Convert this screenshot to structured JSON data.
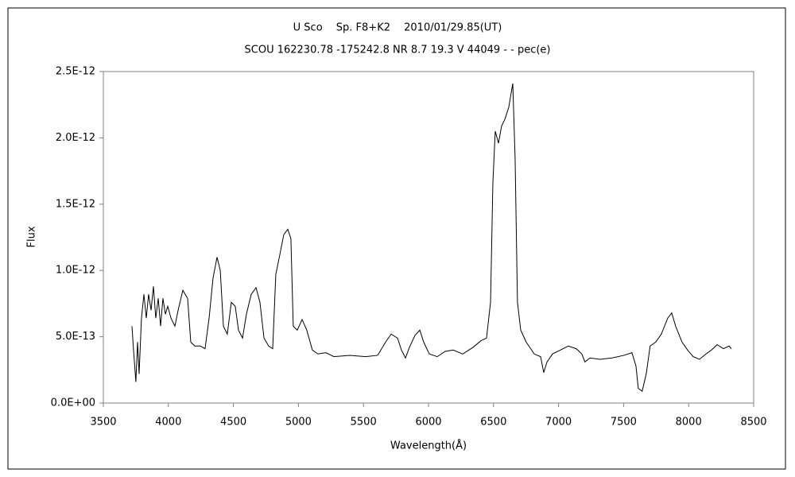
{
  "chart_data": {
    "type": "line",
    "title": "U Sco　 Sp. F8+K2　 2010/01/29.85(UT)",
    "subtitle": "SCOU 162230.78 -175242.8 NR 8.7 19.3 V 44049 - - pec(e)",
    "x_label": "Wavelength(Å)",
    "y_label": "Flux",
    "xlim": [
      3500,
      8500
    ],
    "xticks": [
      3500,
      4000,
      4500,
      5000,
      5500,
      6000,
      6500,
      7000,
      7500,
      8000,
      8500
    ],
    "ylim": [
      0,
      2.5e-12
    ],
    "yticks": [
      {
        "value": 0,
        "label": "0.0E+00"
      },
      {
        "value": 5e-13,
        "label": "5.0E-13"
      },
      {
        "value": 1e-12,
        "label": "1.0E-12"
      },
      {
        "value": 1.5e-12,
        "label": "1.5E-12"
      },
      {
        "value": 2e-12,
        "label": "2.0E-12"
      },
      {
        "value": 2.5e-12,
        "label": "2.5E-12"
      }
    ],
    "grid": false,
    "x": [
      3720,
      3732,
      3750,
      3763,
      3775,
      3793,
      3812,
      3830,
      3848,
      3867,
      3885,
      3903,
      3922,
      3940,
      3958,
      3977,
      3995,
      4020,
      4050,
      4075,
      4111,
      4148,
      4172,
      4203,
      4246,
      4282,
      4313,
      4343,
      4374,
      4399,
      4423,
      4453,
      4484,
      4514,
      4539,
      4570,
      4600,
      4637,
      4674,
      4704,
      4735,
      4771,
      4802,
      4826,
      4857,
      4887,
      4918,
      4942,
      4960,
      4991,
      5028,
      5064,
      5107,
      5150,
      5211,
      5273,
      5395,
      5517,
      5609,
      5670,
      5713,
      5762,
      5792,
      5823,
      5853,
      5896,
      5933,
      5963,
      6006,
      6067,
      6128,
      6190,
      6263,
      6342,
      6403,
      6446,
      6477,
      6495,
      6513,
      6538,
      6562,
      6587,
      6617,
      6648,
      6666,
      6684,
      6709,
      6751,
      6813,
      6862,
      6886,
      6911,
      6953,
      7014,
      7075,
      7136,
      7179,
      7203,
      7240,
      7320,
      7411,
      7503,
      7564,
      7595,
      7613,
      7643,
      7674,
      7704,
      7747,
      7790,
      7839,
      7870,
      7900,
      7949,
      7992,
      8035,
      8084,
      8133,
      8176,
      8219,
      8268,
      8311,
      8329
    ],
    "series": [
      {
        "name": "Flux",
        "color": "#000000",
        "values": [
          5.8e-13,
          4e-13,
          1.6e-13,
          4.6e-13,
          2.2e-13,
          6.4e-13,
          8.2e-13,
          6.4e-13,
          8.2e-13,
          7e-13,
          8.8e-13,
          6.4e-13,
          7.9e-13,
          5.8e-13,
          7.9e-13,
          6.7e-13,
          7.3e-13,
          6.4e-13,
          5.8e-13,
          7e-13,
          8.5e-13,
          7.9e-13,
          4.6e-13,
          4.3e-13,
          4.3e-13,
          4.1e-13,
          6.4e-13,
          9.4e-13,
          1.1e-12,
          1e-12,
          5.8e-13,
          5.2e-13,
          7.6e-13,
          7.3e-13,
          5.5e-13,
          4.9e-13,
          6.7e-13,
          8.2e-13,
          8.7e-13,
          7.6e-13,
          4.9e-13,
          4.3e-13,
          4.1e-13,
          9.7e-13,
          1.12e-12,
          1.27e-12,
          1.31e-12,
          1.24e-12,
          5.8e-13,
          5.5e-13,
          6.3e-13,
          5.5e-13,
          4e-13,
          3.7e-13,
          3.8e-13,
          3.5e-13,
          3.6e-13,
          3.5e-13,
          3.6e-13,
          4.6e-13,
          5.2e-13,
          4.9e-13,
          4e-13,
          3.4e-13,
          4.2e-13,
          5.1e-13,
          5.5e-13,
          4.6e-13,
          3.7e-13,
          3.5e-13,
          3.9e-13,
          4e-13,
          3.7e-13,
          4.2e-13,
          4.7e-13,
          4.9e-13,
          7.6e-13,
          1.66e-12,
          2.05e-12,
          1.96e-12,
          2.09e-12,
          2.14e-12,
          2.23e-12,
          2.41e-12,
          1.84e-12,
          7.6e-13,
          5.5e-13,
          4.6e-13,
          3.7e-13,
          3.5e-13,
          2.3e-13,
          3.1e-13,
          3.7e-13,
          4e-13,
          4.3e-13,
          4.1e-13,
          3.7e-13,
          3.1e-13,
          3.4e-13,
          3.3e-13,
          3.4e-13,
          3.6e-13,
          3.8e-13,
          2.8e-13,
          1.1e-13,
          9e-14,
          2.2e-13,
          4.3e-13,
          4.6e-13,
          5.2e-13,
          6.4e-13,
          6.8e-13,
          5.8e-13,
          4.6e-13,
          4e-13,
          3.5e-13,
          3.3e-13,
          3.7e-13,
          4e-13,
          4.4e-13,
          4.1e-13,
          4.3e-13,
          4.1e-13
        ]
      }
    ]
  }
}
